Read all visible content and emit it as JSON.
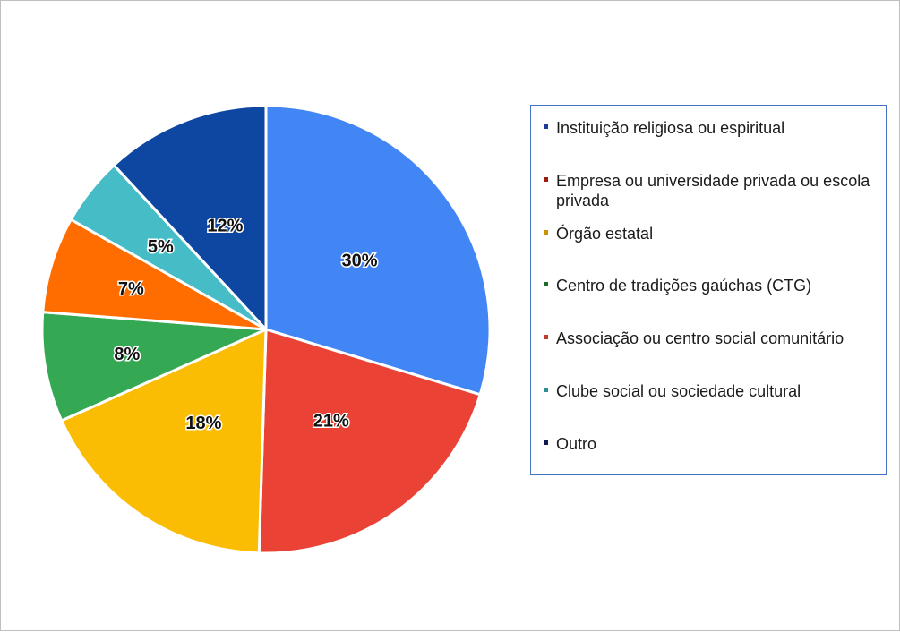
{
  "chart_data": {
    "type": "pie",
    "title": "",
    "categories": [
      "Instituição religiosa ou espiritual",
      "Empresa ou universidade privada ou escola privada",
      "Órgão estatal",
      "Centro de tradições gaúchas (CTG)",
      "Associação ou centro social comunitário",
      "Clube social ou sociedade cultural",
      "Outro"
    ],
    "values": [
      30,
      21,
      18,
      8,
      7,
      5,
      12
    ],
    "labels": [
      "30%",
      "21%",
      "18%",
      "8%",
      "7%",
      "5%",
      "12%"
    ],
    "colors": [
      "#4285f4",
      "#ea4335",
      "#fbbc04",
      "#34a853",
      "#ff6d01",
      "#46bdc6",
      "#0d47a1"
    ],
    "legend_marker_colors": [
      "#1a3a9c",
      "#9c1c10",
      "#c99200",
      "#1d6b2c",
      "#c0392b",
      "#2a8f99",
      "#101a4d"
    ],
    "legend_position": "right",
    "start_angle_deg": 0,
    "direction": "clockwise"
  }
}
